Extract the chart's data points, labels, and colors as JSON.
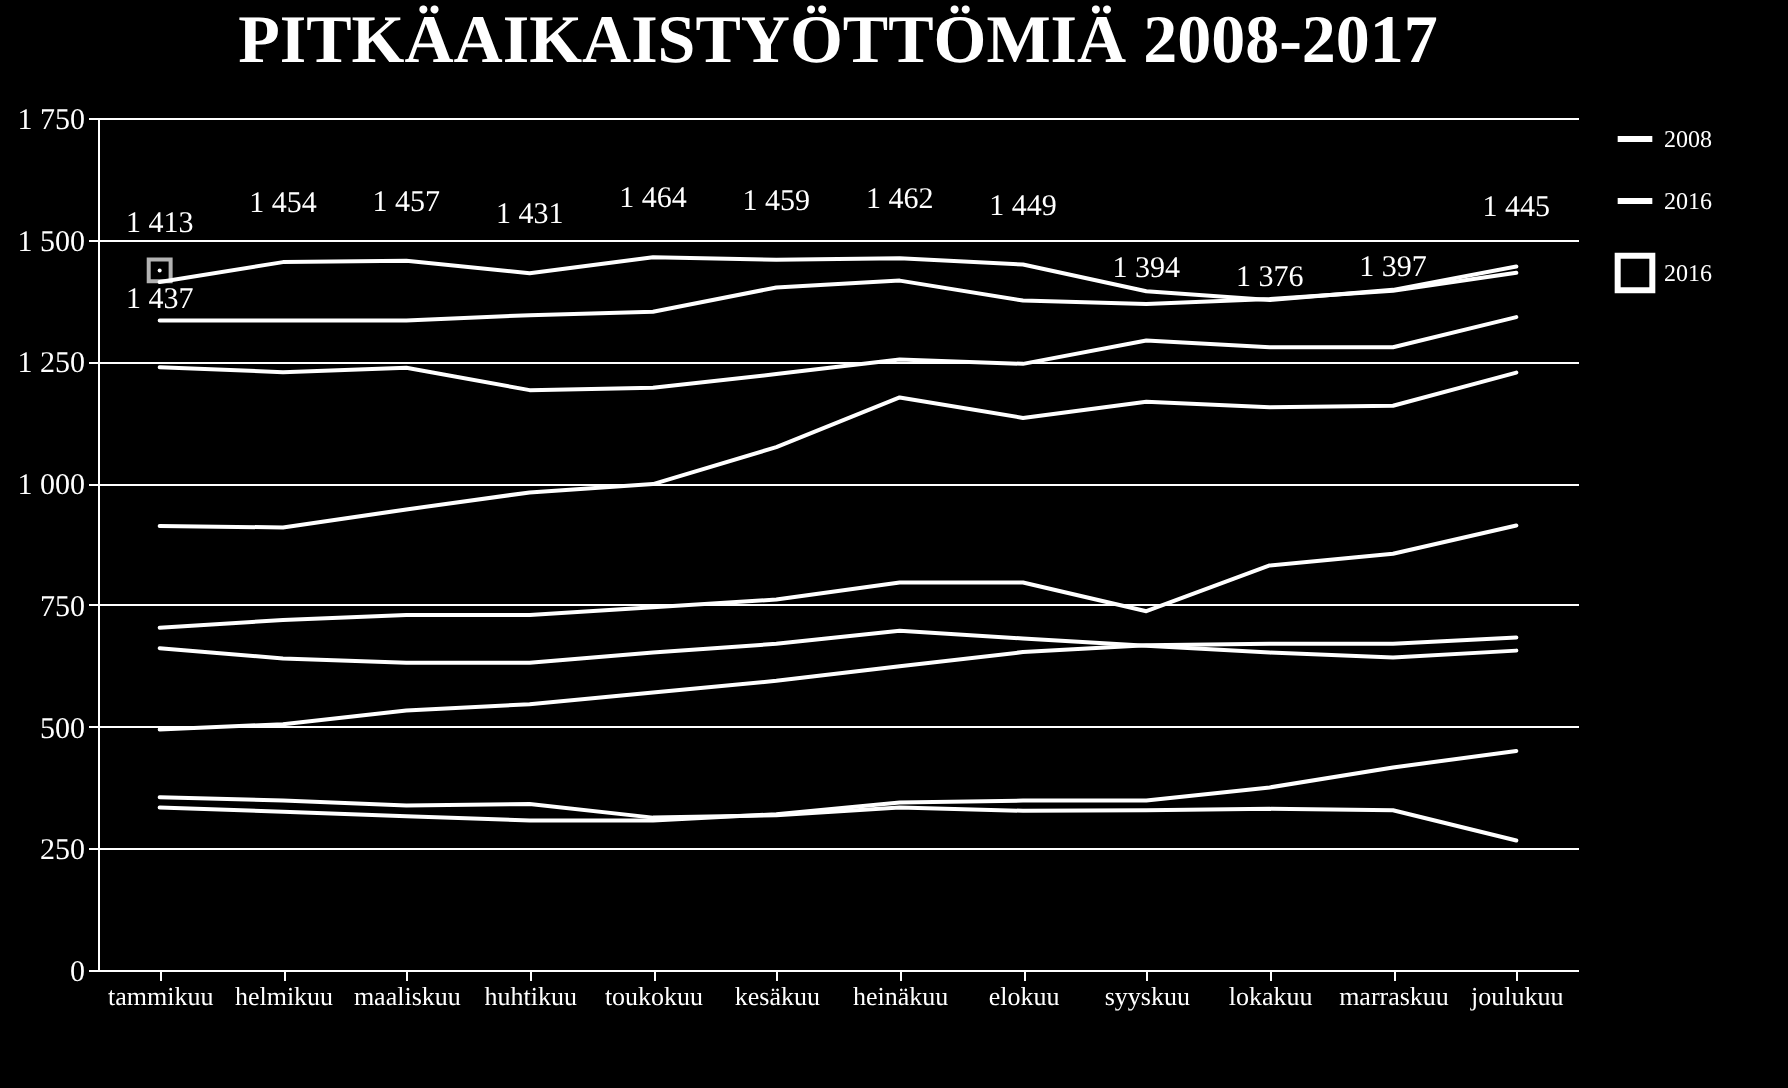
{
  "chart_data": {
    "type": "line",
    "title": "PITKÄAIKAISTYÖTTÖMIÄ 2008-2017",
    "categories": [
      "tammikuu",
      "helmikuu",
      "maaliskuu",
      "huhtikuu",
      "toukokuu",
      "kesäkuu",
      "heinäkuu",
      "elokuu",
      "syyskuu",
      "lokakuu",
      "marraskuu",
      "joulukuu"
    ],
    "series": [
      {
        "color": "#ffffff",
        "values": [
          1413,
          1454,
          1457,
          1431,
          1464,
          1459,
          1462,
          1449,
          1394,
          1376,
          1397,
          1445
        ],
        "value_labels": [
          "1 413",
          "1 454",
          "1 457",
          "1 431",
          "1 464",
          "1 459",
          "1 462",
          "1 449",
          "1 394",
          "1 376",
          "1 397",
          "1 445"
        ]
      },
      {
        "name": "2008",
        "color": "#ffffff",
        "values": [
          355,
          348,
          338,
          341,
          313,
          318,
          334,
          327,
          328,
          331,
          328,
          266
        ]
      },
      {
        "name": "2016",
        "color": "#ffffff",
        "values": [
          1334,
          1334,
          1334,
          1345,
          1352,
          1402,
          1416,
          1375,
          1368,
          1378,
          1395,
          1432
        ]
      },
      {
        "color": "#ffffff",
        "values": [
          1238,
          1228,
          1237,
          1191,
          1196,
          1224,
          1254,
          1245,
          1293,
          1279,
          1279,
          1341
        ]
      },
      {
        "color": "#ffffff",
        "values": [
          912,
          909,
          946,
          981,
          998,
          1074,
          1176,
          1134,
          1167,
          1156,
          1159,
          1227
        ]
      },
      {
        "color": "#ffffff",
        "values": [
          703,
          719,
          729,
          729,
          745,
          761,
          796,
          796,
          737,
          831,
          855,
          913
        ]
      },
      {
        "color": "#ffffff",
        "values": [
          661,
          640,
          631,
          631,
          652,
          670,
          697,
          681,
          666,
          652,
          642,
          656
        ]
      },
      {
        "color": "#ffffff",
        "values": [
          494,
          505,
          533,
          546,
          570,
          594,
          624,
          653,
          667,
          670,
          670,
          683
        ]
      },
      {
        "color": "#ffffff",
        "values": [
          334,
          325,
          316,
          307,
          307,
          320,
          344,
          348,
          348,
          375,
          416,
          450
        ]
      },
      {
        "name": "2016",
        "color": "#ffffff",
        "marker": "square",
        "values": [
          1437,
          null,
          null,
          null,
          null,
          null,
          null,
          null,
          null,
          null,
          null,
          null
        ],
        "value_labels": [
          "1 437",
          null,
          null,
          null,
          null,
          null,
          null,
          null,
          null,
          null,
          null,
          null
        ]
      }
    ],
    "ylim": [
      0,
      1750
    ],
    "yticks": [
      0,
      250,
      500,
      750,
      {
        "value": 1000,
        "label": "1 000"
      },
      {
        "value": 1250,
        "label": "1 250"
      },
      {
        "value": 1500,
        "label": "1 500"
      },
      {
        "value": 1750,
        "label": "1 750"
      }
    ],
    "grid": "y",
    "legend": "right"
  }
}
